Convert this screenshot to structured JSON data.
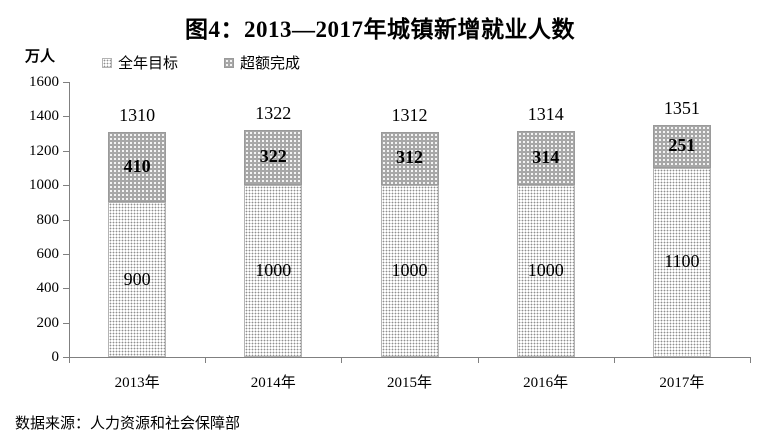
{
  "title": "图4：2013—2017年城镇新增就业人数",
  "y_axis_unit": "万人",
  "legend": [
    {
      "label": "全年目标",
      "swatch": "light-dotted-white"
    },
    {
      "label": "超额完成",
      "swatch": "dark-dotted-gray"
    }
  ],
  "source": "数据来源：人力资源和社会保障部",
  "colors": {
    "target_fill": "#ffffff",
    "target_dots": "#8f8f8f",
    "over_fill": "#a7a7a7",
    "over_dots": "#ffffff",
    "axis": "#808080",
    "text": "#000000"
  },
  "chart_data": {
    "type": "bar",
    "stacked": true,
    "title": "图4：2013—2017年城镇新增就业人数",
    "ylabel": "万人",
    "xlabel": "",
    "categories": [
      "2013年",
      "2014年",
      "2015年",
      "2016年",
      "2017年"
    ],
    "series": [
      {
        "name": "全年目标",
        "values": [
          900,
          1000,
          1000,
          1000,
          1100
        ]
      },
      {
        "name": "超额完成",
        "values": [
          410,
          322,
          312,
          314,
          251
        ]
      }
    ],
    "totals": [
      1310,
      1322,
      1312,
      1314,
      1351
    ],
    "ylim": [
      0,
      1600
    ],
    "yticks": [
      0,
      200,
      400,
      600,
      800,
      1000,
      1200,
      1400,
      1600
    ],
    "grid": false,
    "legend_position": "top-left"
  }
}
